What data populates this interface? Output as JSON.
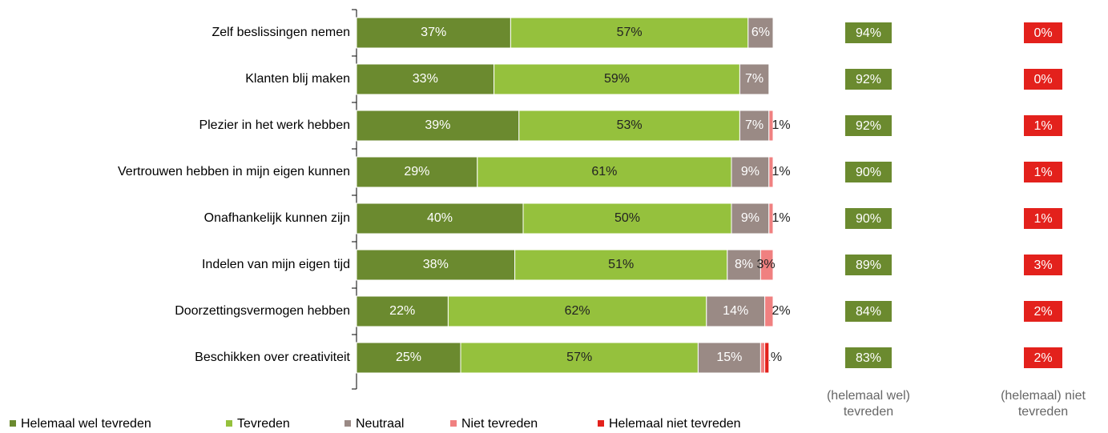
{
  "chart_data": {
    "type": "stacked-bar-horizontal",
    "categories": [
      "Zelf beslissingen nemen",
      "Klanten blij maken",
      "Plezier in het werk hebben",
      "Vertrouwen hebben in mijn eigen kunnen",
      "Onafhankelijk kunnen zijn",
      "Indelen van mijn eigen tijd",
      "Doorzettingsvermogen hebben",
      "Beschikken over creativiteit"
    ],
    "xlim": [
      0,
      100
    ],
    "legend": "bottom",
    "series": [
      {
        "name": "Helemaal wel tevreden",
        "color": "#6b8a2f",
        "values": [
          37,
          33,
          39,
          29,
          40,
          38,
          22,
          25
        ],
        "value_labels": [
          "37%",
          "33%",
          "39%",
          "29%",
          "40%",
          "38%",
          "22%",
          "25%"
        ]
      },
      {
        "name": "Tevreden",
        "color": "#95c13d",
        "values": [
          57,
          59,
          53,
          61,
          50,
          51,
          62,
          57
        ],
        "value_labels": [
          "57%",
          "59%",
          "53%",
          "61%",
          "50%",
          "51%",
          "62%",
          "57%"
        ]
      },
      {
        "name": "Neutraal",
        "color": "#9a8a85",
        "values": [
          6,
          7,
          7,
          9,
          9,
          8,
          14,
          15
        ],
        "value_labels": [
          "6%",
          "7%",
          "7%",
          "9%",
          "9%",
          "8%",
          "14%",
          "15%"
        ]
      },
      {
        "name": "Niet tevreden",
        "color": "#f08080",
        "values": [
          0,
          0,
          1,
          1,
          1,
          3,
          2,
          1
        ],
        "value_labels": [
          null,
          null,
          "1%",
          "1%",
          "1%",
          "3%",
          "2%",
          "1%"
        ]
      },
      {
        "name": "Helemaal niet tevreden",
        "color": "#e3211c",
        "values": [
          0,
          0,
          0,
          0,
          0,
          0,
          0,
          1
        ],
        "value_labels": [
          null,
          null,
          null,
          null,
          null,
          null,
          null,
          null
        ]
      }
    ],
    "summary": [
      {
        "name": "(helemaal wel) tevreden",
        "color": "#6b8a2f",
        "values": [
          94,
          92,
          92,
          90,
          90,
          89,
          84,
          83
        ],
        "value_labels": [
          "94%",
          "92%",
          "92%",
          "90%",
          "90%",
          "89%",
          "84%",
          "83%"
        ]
      },
      {
        "name": "(helemaal) niet tevreden",
        "color": "#e3211c",
        "values": [
          0,
          0,
          1,
          1,
          1,
          3,
          2,
          2
        ],
        "value_labels": [
          "0%",
          "0%",
          "1%",
          "1%",
          "1%",
          "3%",
          "2%",
          "2%"
        ]
      }
    ]
  }
}
